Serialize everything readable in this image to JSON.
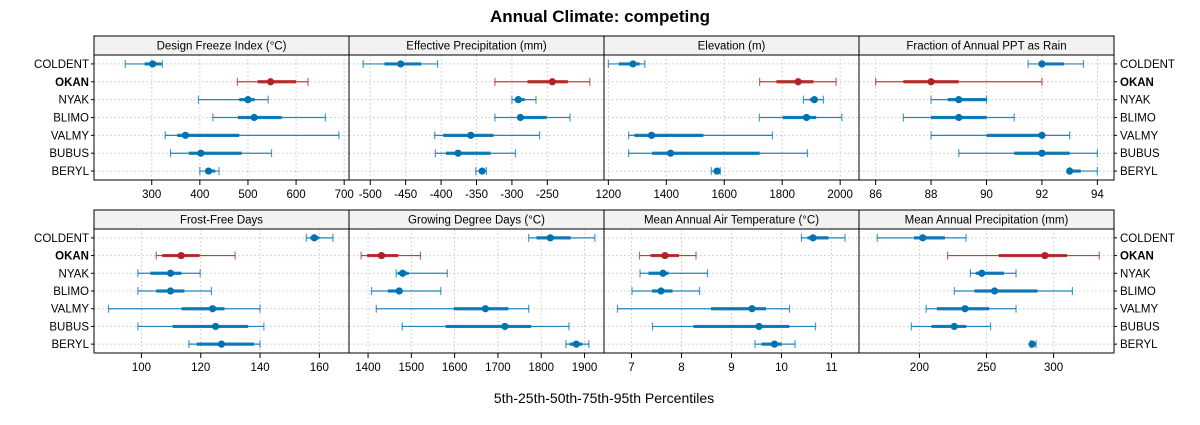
{
  "chart_data": {
    "type": "dotplot-percentiles",
    "title": "Annual Climate: competing",
    "xlabel": "5th-25th-50th-75th-95th Percentiles",
    "ylabel": "",
    "categories": [
      "COLDENT",
      "OKAN",
      "NYAK",
      "BLIMO",
      "VALMY",
      "BUBUS",
      "BERYL"
    ],
    "highlight_category": "OKAN",
    "colors": {
      "default": "#0072B2",
      "highlight": "#B22222",
      "grid": "#c8c8c8",
      "strip": "#f2f2f2"
    },
    "grid": true,
    "layout": "2 rows x 4 columns",
    "panels": [
      {
        "title": "Design Freeze Index (°C)",
        "xlim": [
          180,
          710
        ],
        "ticks": [
          300,
          400,
          500,
          600,
          700
        ],
        "series": {
          "COLDENT": [
            245,
            285,
            302,
            320,
            322
          ],
          "OKAN": [
            478,
            520,
            547,
            600,
            625
          ],
          "NYAK": [
            397,
            482,
            500,
            514,
            542
          ],
          "BLIMO": [
            427,
            479,
            513,
            570,
            661
          ],
          "VALMY": [
            328,
            353,
            370,
            482,
            689
          ],
          "BUBUS": [
            339,
            377,
            402,
            487,
            549
          ],
          "BERYL": [
            400,
            411,
            418,
            432,
            440
          ]
        }
      },
      {
        "title": "Effective Precipitation (mm)",
        "xlim": [
          -530,
          -170
        ],
        "ticks": [
          -500,
          -450,
          -400,
          -350,
          -300,
          -250
        ],
        "series": {
          "COLDENT": [
            -510,
            -480,
            -457,
            -428,
            -405
          ],
          "OKAN": [
            -324,
            -278,
            -243,
            -221,
            -190
          ],
          "NYAK": [
            -300,
            -296,
            -291,
            -282,
            -266
          ],
          "BLIMO": [
            -324,
            -287,
            -288,
            -251,
            -218
          ],
          "VALMY": [
            -409,
            -397,
            -358,
            -326,
            -261
          ],
          "BUBUS": [
            -408,
            -393,
            -376,
            -330,
            -295
          ],
          "BERYL": [
            -351,
            -346,
            -342,
            -339,
            -336
          ]
        }
      },
      {
        "title": "Elevation (m)",
        "xlim": [
          1185,
          2065
        ],
        "ticks": [
          1200,
          1400,
          1600,
          1800,
          2000
        ],
        "series": {
          "COLDENT": [
            1200,
            1236,
            1285,
            1308,
            1326
          ],
          "OKAN": [
            1722,
            1780,
            1855,
            1908,
            1986
          ],
          "NYAK": [
            1873,
            1896,
            1911,
            1921,
            1942
          ],
          "BLIMO": [
            1721,
            1802,
            1884,
            1917,
            2006
          ],
          "VALMY": [
            1270,
            1290,
            1349,
            1528,
            1766
          ],
          "BUBUS": [
            1270,
            1351,
            1415,
            1722,
            1887
          ],
          "BERYL": [
            1555,
            1565,
            1575,
            1580,
            1586
          ]
        }
      },
      {
        "title": "Fraction of Annual PPT as Rain",
        "xlim": [
          85.4,
          94.6
        ],
        "ticks": [
          86,
          88,
          90,
          92,
          94
        ],
        "series": {
          "COLDENT": [
            91.5,
            92,
            92,
            92.8,
            93.5
          ],
          "OKAN": [
            86,
            87,
            88,
            89,
            92
          ],
          "NYAK": [
            88,
            88.6,
            89,
            90,
            90
          ],
          "BLIMO": [
            87,
            88,
            89,
            90,
            91
          ],
          "VALMY": [
            88,
            90,
            92,
            92,
            93
          ],
          "BUBUS": [
            89,
            91,
            92,
            93,
            94
          ],
          "BERYL": [
            93,
            93,
            93,
            93.4,
            94
          ]
        }
      },
      {
        "title": "Frost-Free Days",
        "xlim": [
          84,
          170
        ],
        "ticks": [
          100,
          120,
          140,
          160
        ],
        "series": {
          "COLDENT": [
            155.6,
            157,
            158.3,
            160,
            164.6
          ],
          "OKAN": [
            105,
            107,
            113.4,
            119.6,
            131.6
          ],
          "NYAK": [
            98.8,
            103,
            109.8,
            113.5,
            119.8
          ],
          "BLIMO": [
            98.8,
            105,
            109.8,
            114.5,
            123.6
          ],
          "VALMY": [
            88.9,
            113.5,
            124,
            128,
            140
          ],
          "BUBUS": [
            98.8,
            110.5,
            125,
            136,
            141.3
          ],
          "BERYL": [
            116,
            118.6,
            127,
            138,
            140
          ]
        }
      },
      {
        "title": "Growing Degree Days (°C)",
        "xlim": [
          1356,
          1945
        ],
        "ticks": [
          1400,
          1500,
          1600,
          1700,
          1800,
          1900
        ],
        "series": {
          "COLDENT": [
            1771,
            1789,
            1821,
            1868,
            1924
          ],
          "OKAN": [
            1384,
            1398,
            1431,
            1470,
            1521
          ],
          "NYAK": [
            1465,
            1469,
            1480,
            1494,
            1583
          ],
          "BLIMO": [
            1408,
            1446,
            1472,
            1478,
            1568
          ],
          "VALMY": [
            1419,
            1598,
            1671,
            1724,
            1771
          ],
          "BUBUS": [
            1479,
            1579,
            1716,
            1777,
            1864
          ],
          "BERYL": [
            1857,
            1866,
            1881,
            1895,
            1910
          ]
        }
      },
      {
        "title": "Mean Annual Air Temperature (°C)",
        "xlim": [
          6.45,
          11.55
        ],
        "ticks": [
          7,
          8,
          9,
          10,
          11
        ],
        "series": {
          "COLDENT": [
            10.4,
            10.52,
            10.63,
            10.94,
            11.27
          ],
          "OKAN": [
            7.16,
            7.38,
            7.67,
            7.95,
            8.29
          ],
          "NYAK": [
            7.17,
            7.34,
            7.63,
            7.74,
            8.52
          ],
          "BLIMO": [
            7.01,
            7.41,
            7.59,
            7.82,
            8.36
          ],
          "VALMY": [
            6.72,
            8.59,
            9.41,
            9.69,
            10.16
          ],
          "BUBUS": [
            7.42,
            8.24,
            9.55,
            10.16,
            10.68
          ],
          "BERYL": [
            9.47,
            9.6,
            9.86,
            10.0,
            10.27
          ]
        }
      },
      {
        "title": "Mean Annual Precipitation (mm)",
        "xlim": [
          155,
          345
        ],
        "ticks": [
          200,
          250,
          300
        ],
        "series": {
          "COLDENT": [
            168.6,
            196,
            202.5,
            219,
            234.7
          ],
          "OKAN": [
            221,
            259,
            293.5,
            310,
            334
          ],
          "NYAK": [
            238,
            242,
            246.5,
            263,
            272
          ],
          "BLIMO": [
            226,
            241,
            256,
            288,
            314
          ],
          "VALMY": [
            205,
            213,
            234,
            252,
            272
          ],
          "BUBUS": [
            194,
            209,
            226,
            235,
            253
          ],
          "BERYL": [
            283,
            283.5,
            284,
            285,
            287
          ]
        }
      }
    ]
  }
}
